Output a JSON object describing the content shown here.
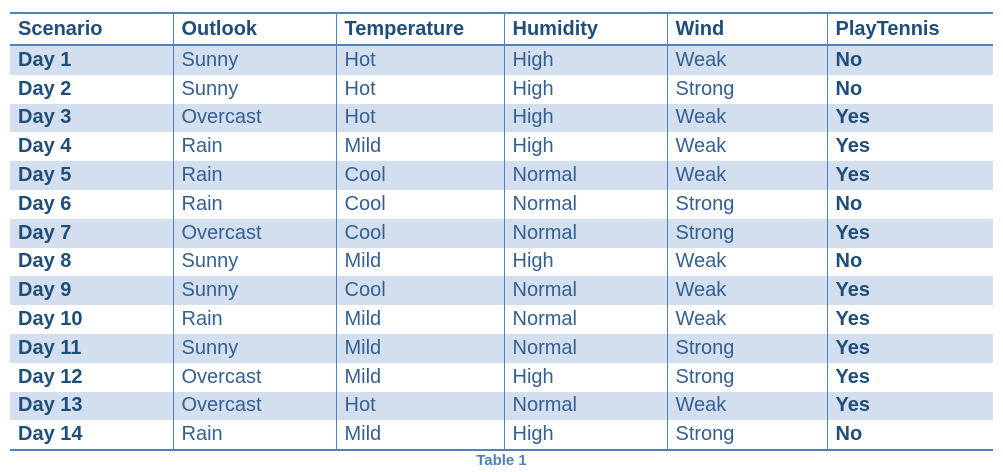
{
  "table": {
    "headers": [
      "Scenario",
      "Outlook",
      "Temperature",
      "Humidity",
      "Wind",
      "PlayTennis"
    ],
    "rows": [
      [
        "Day 1",
        "Sunny",
        "Hot",
        "High",
        "Weak",
        "No"
      ],
      [
        "Day 2",
        "Sunny",
        "Hot",
        "High",
        "Strong",
        "No"
      ],
      [
        "Day 3",
        "Overcast",
        "Hot",
        "High",
        "Weak",
        "Yes"
      ],
      [
        "Day 4",
        "Rain",
        "Mild",
        "High",
        "Weak",
        "Yes"
      ],
      [
        "Day 5",
        "Rain",
        "Cool",
        "Normal",
        "Weak",
        "Yes"
      ],
      [
        "Day 6",
        "Rain",
        "Cool",
        "Normal",
        "Strong",
        "No"
      ],
      [
        "Day 7",
        "Overcast",
        "Cool",
        "Normal",
        "Strong",
        "Yes"
      ],
      [
        "Day 8",
        "Sunny",
        "Mild",
        "High",
        "Weak",
        "No"
      ],
      [
        "Day 9",
        "Sunny",
        "Cool",
        "Normal",
        "Weak",
        "Yes"
      ],
      [
        "Day 10",
        "Rain",
        "Mild",
        "Normal",
        "Weak",
        "Yes"
      ],
      [
        "Day 11",
        "Sunny",
        "Mild",
        "Normal",
        "Strong",
        "Yes"
      ],
      [
        "Day 12",
        "Overcast",
        "Mild",
        "High",
        "Strong",
        "Yes"
      ],
      [
        "Day 13",
        "Overcast",
        "Hot",
        "Normal",
        "Weak",
        "Yes"
      ],
      [
        "Day 14",
        "Rain",
        "Mild",
        "High",
        "Strong",
        "No"
      ]
    ]
  },
  "caption": "Table 1",
  "colors": {
    "border": "#4f81bd",
    "band": "#d3dfee",
    "header_text": "#1f4e79",
    "body_text": "#366092",
    "caption_text": "#4f81bd"
  }
}
